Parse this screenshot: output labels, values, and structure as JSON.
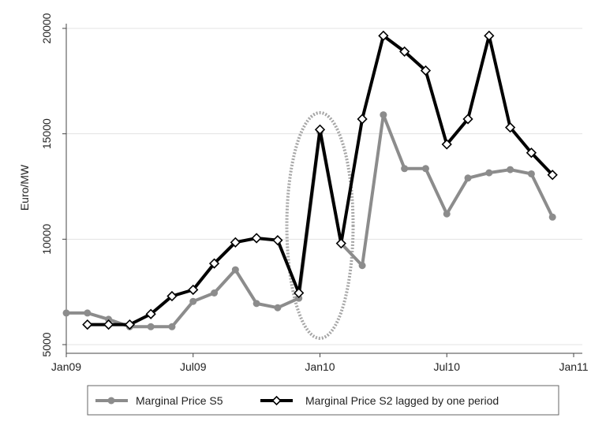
{
  "chart_data": {
    "type": "line",
    "title": "",
    "xlabel": "",
    "ylabel": "Euro/MW",
    "xlim": [
      "2009-01",
      "2011-01"
    ],
    "ylim": [
      5000,
      20000
    ],
    "x_ticks": [
      "Jan09",
      "Jul09",
      "Jan10",
      "Jul10",
      "Jan11"
    ],
    "y_ticks": [
      5000,
      10000,
      15000,
      20000
    ],
    "grid": "horizontal",
    "legend_position": "bottom",
    "series": [
      {
        "name": "Marginal Price S5",
        "color": "#8c8c8c",
        "marker": "dot",
        "x": [
          "2009-01",
          "2009-02",
          "2009-03",
          "2009-04",
          "2009-05",
          "2009-06",
          "2009-07",
          "2009-08",
          "2009-09",
          "2009-10",
          "2009-11",
          "2009-12",
          "2010-01",
          "2010-02",
          "2010-03",
          "2010-04",
          "2010-05",
          "2010-06",
          "2010-07",
          "2010-08",
          "2010-09",
          "2010-10",
          "2010-11",
          "2010-12"
        ],
        "y": [
          6500,
          6500,
          6200,
          5850,
          5850,
          5850,
          7050,
          7450,
          8550,
          6950,
          6750,
          7200,
          15100,
          9800,
          8750,
          15900,
          13350,
          13350,
          11200,
          12900,
          13150,
          13300,
          13100,
          11050
        ]
      },
      {
        "name": "Marginal Price S2 lagged by one period",
        "color": "#000000",
        "marker": "diamond",
        "x": [
          "2009-02",
          "2009-03",
          "2009-04",
          "2009-05",
          "2009-06",
          "2009-07",
          "2009-08",
          "2009-09",
          "2009-10",
          "2009-11",
          "2009-12",
          "2010-01",
          "2010-02",
          "2010-03",
          "2010-04",
          "2010-05",
          "2010-06",
          "2010-07",
          "2010-08",
          "2010-09",
          "2010-10",
          "2010-11",
          "2010-12"
        ],
        "y": [
          5950,
          5950,
          5950,
          6450,
          7300,
          7600,
          8850,
          9850,
          10050,
          9950,
          7450,
          15200,
          9800,
          15700,
          19650,
          18900,
          18000,
          14500,
          15700,
          19650,
          15300,
          14100,
          13050
        ]
      }
    ],
    "annotation": {
      "shape": "dotted-ellipse",
      "center_x": "2010-01",
      "y_range": [
        5300,
        16000
      ]
    }
  }
}
